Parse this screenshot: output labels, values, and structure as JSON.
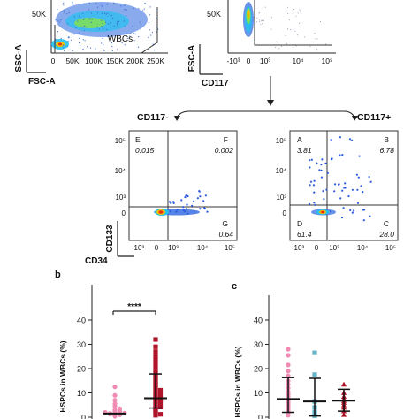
{
  "flow_top": {
    "left": {
      "ytick_label": "50K",
      "xticks": [
        "0",
        "50K",
        "100K",
        "150K",
        "200K",
        "250K"
      ],
      "gate_label": "WBCs",
      "ylabel": "SSC-A",
      "xlabel": "FSC-A"
    },
    "right": {
      "ytick_label": "50K",
      "xticks": [
        "-10³",
        "0",
        "10³",
        "10⁴",
        "10⁵"
      ],
      "ylabel": "FSC-A",
      "xlabel": "CD117"
    }
  },
  "flow_quad": {
    "left": {
      "title": "CD117-",
      "quadrants": [
        {
          "id": "E",
          "value": "0.015"
        },
        {
          "id": "F",
          "value": "0.002"
        },
        {
          "id": "G",
          "value": "0.64"
        }
      ],
      "xticks": [
        "-10³",
        "0",
        "10³",
        "10⁴",
        "10⁵"
      ],
      "yticks": [
        "10⁵",
        "10⁴",
        "10³",
        "0"
      ],
      "ylabel": "CD133",
      "xlabel": "CD34"
    },
    "right": {
      "title": "CD117+",
      "quadrants": [
        {
          "id": "A",
          "value": "3.81"
        },
        {
          "id": "B",
          "value": "6.78"
        },
        {
          "id": "C",
          "value": "28.0"
        },
        {
          "id": "D",
          "value": "61.4"
        }
      ],
      "xticks": [
        "-10³",
        "0",
        "10³",
        "10⁴",
        "10⁵"
      ],
      "yticks": [
        "10⁵",
        "10⁴",
        "10³",
        "0"
      ]
    }
  },
  "panel_b": {
    "letter": "b",
    "ylabel": "HSPCs in WBCs (%)",
    "sig": "****"
  },
  "panel_c": {
    "letter": "c",
    "ylabel": "HSPCs in WBCs (%)"
  },
  "colors": {
    "pink": "#f08cb4",
    "darkred": "#b0142a",
    "teal": "#6ab4c8"
  },
  "chart_data": [
    {
      "type": "scatter",
      "panel": "b",
      "ylabel": "HSPCs in WBCs (%)",
      "yticks": [
        0,
        10,
        20,
        30,
        40
      ],
      "ylim": [
        0,
        40
      ],
      "series": [
        {
          "color": "#f08cb4",
          "marker": "circle",
          "median": 1.5,
          "values": [
            0.4,
            0.8,
            1.0,
            1.2,
            1.3,
            1.5,
            1.6,
            1.7,
            2.0,
            2.2,
            2.5,
            3.0,
            3.5,
            4.5,
            5.5,
            7.0,
            9.0,
            12.5
          ]
        },
        {
          "color": "#b0142a",
          "marker": "square",
          "median": 7.8,
          "whisker_low": 3.8,
          "whisker_high": 17.8,
          "values": [
            0.8,
            1.2,
            2.0,
            2.6,
            3.2,
            3.8,
            4.2,
            4.8,
            5.3,
            5.8,
            6.4,
            6.9,
            7.4,
            7.8,
            8.2,
            8.8,
            9.3,
            9.9,
            10.5,
            11.1,
            11.9,
            12.6,
            13.5,
            14.3,
            15.1,
            16.0,
            17.0,
            18.0,
            19.2,
            20.5,
            22.0,
            23.5,
            25.0,
            27.0,
            29.0,
            32.0
          ]
        }
      ],
      "annotations": [
        "****"
      ]
    },
    {
      "type": "scatter",
      "panel": "c",
      "ylabel": "HSPCs in WBCs (%)",
      "yticks": [
        0,
        10,
        20,
        30,
        40
      ],
      "ylim": [
        0,
        40
      ],
      "series": [
        {
          "color": "#f08cb4",
          "marker": "circle",
          "median": 7.5,
          "whisker_low": 2.0,
          "whisker_high": 16.3,
          "values": [
            0.8,
            1.8,
            2.8,
            3.5,
            4.5,
            5.2,
            6.0,
            6.8,
            7.5,
            8.5,
            9.5,
            10.5,
            12.0,
            13.5,
            15.0,
            17.0,
            19.0,
            21.5,
            25.5,
            28.0
          ]
        },
        {
          "color": "#6ab4c8",
          "marker": "square",
          "median": 6.5,
          "whisker_low": 0.5,
          "whisker_high": 16.0,
          "values": [
            0.6,
            2.0,
            4.0,
            6.5,
            17.5,
            26.5
          ]
        },
        {
          "color": "#b0142a",
          "marker": "triangle",
          "median": 6.8,
          "whisker_low": 2.5,
          "whisker_high": 11.5,
          "values": [
            1.0,
            2.5,
            4.0,
            5.0,
            6.0,
            6.8,
            7.5,
            8.5,
            10.0,
            13.5
          ]
        }
      ]
    }
  ]
}
